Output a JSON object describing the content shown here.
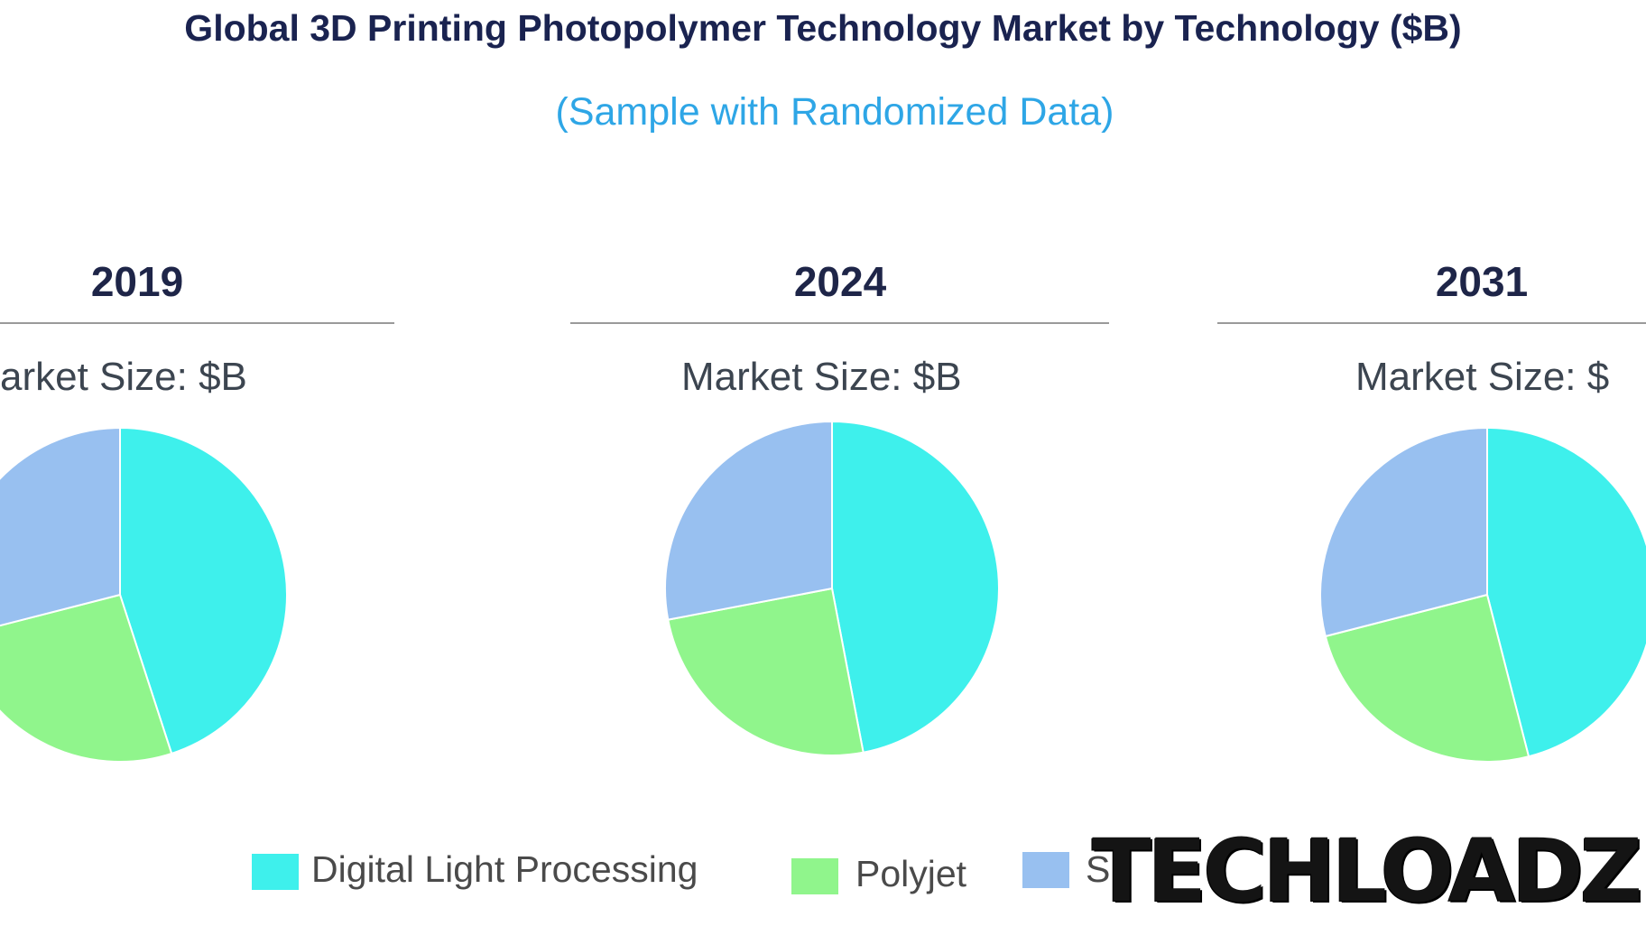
{
  "header": {
    "title": "Global 3D Printing Photopolymer Technology Market by Technology ($B)",
    "subtitle": "(Sample with Randomized Data)"
  },
  "panels": [
    {
      "year": "2019",
      "market_size_label": "arket Size: $B"
    },
    {
      "year": "2024",
      "market_size_label": "Market Size: $B"
    },
    {
      "year": "2031",
      "market_size_label": "Market Size: $"
    }
  ],
  "legend": [
    {
      "label": "Digital Light Processing",
      "color": "#3ef0ec"
    },
    {
      "label": "Polyjet",
      "color": "#90f58c"
    },
    {
      "label": "S",
      "color": "#98c0f0"
    }
  ],
  "watermark": {
    "text": "TECHLOADZ"
  },
  "chart_data": [
    {
      "type": "pie",
      "title": "2019",
      "categories": [
        "Digital Light Processing",
        "Polyjet",
        "S"
      ],
      "values": [
        45,
        26,
        29
      ],
      "colors": [
        "#3ef0ec",
        "#90f58c",
        "#98c0f0"
      ]
    },
    {
      "type": "pie",
      "title": "2024",
      "categories": [
        "Digital Light Processing",
        "Polyjet",
        "S"
      ],
      "values": [
        47,
        25,
        28
      ],
      "colors": [
        "#3ef0ec",
        "#90f58c",
        "#98c0f0"
      ]
    },
    {
      "type": "pie",
      "title": "2031",
      "categories": [
        "Digital Light Processing",
        "Polyjet",
        "S"
      ],
      "values": [
        46,
        25,
        29
      ],
      "colors": [
        "#3ef0ec",
        "#90f58c",
        "#98c0f0"
      ]
    }
  ]
}
